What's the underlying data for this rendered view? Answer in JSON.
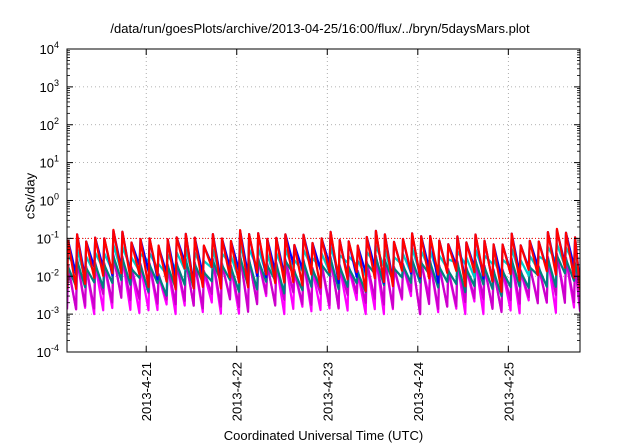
{
  "chart_data": {
    "type": "line",
    "title": "/data/run/goesPlots/archive/2013-04-25/16:00/flux/../bryn/5daysMars.plot",
    "xlabel": "Coordinated Universal Time (UTC)",
    "ylabel": "cSv/day",
    "yscale": "log",
    "ylim": [
      0.0001,
      10000
    ],
    "xlim": [
      "2013-04-20T03:00",
      "2013-04-25T19:00"
    ],
    "y_ticks": [
      "10-4",
      "10-3",
      "10-2",
      "10-1",
      "100",
      "101",
      "102",
      "103",
      "104"
    ],
    "x_ticks": [
      "2013-4-21",
      "2013-4-22",
      "2013-4-23",
      "2013-4-24",
      "2013-4-25"
    ],
    "grid": true,
    "reference_line": {
      "y": 0.1,
      "color": "#ff0000",
      "style": "dotted"
    },
    "pattern": "sawtooth, about 10 cycles per day: each cycle jumps up then decays over about 2.4 hours",
    "series": [
      {
        "color": "#ff0000",
        "peak_median": 0.1,
        "peak_range": [
          0.065,
          0.2
        ],
        "trough_median": 0.008,
        "trough_range": [
          0.0035,
          0.02
        ]
      },
      {
        "color": "#0000ff",
        "peak_median": 0.1,
        "peak_range": [
          0.06,
          0.16
        ],
        "trough_median": 0.012,
        "trough_range": [
          0.005,
          0.025
        ]
      },
      {
        "color": "#00cccc",
        "peak_median": 0.04,
        "peak_range": [
          0.02,
          0.08
        ],
        "trough_median": 0.015,
        "trough_range": [
          0.008,
          0.025
        ]
      },
      {
        "color": "#008080",
        "peak_median": 0.02,
        "peak_range": [
          0.01,
          0.04
        ],
        "trough_median": 0.006,
        "trough_range": [
          0.003,
          0.012
        ]
      },
      {
        "color": "#cc00cc",
        "peak_median": 0.022,
        "peak_range": [
          0.01,
          0.05
        ],
        "trough_median": 0.002,
        "trough_range": [
          0.001,
          0.004
        ]
      },
      {
        "color": "#ff00ff",
        "peak_median": 0.02,
        "peak_range": [
          0.01,
          0.04
        ],
        "trough_median": 0.0015,
        "trough_range": [
          0.001,
          0.003
        ]
      }
    ]
  }
}
